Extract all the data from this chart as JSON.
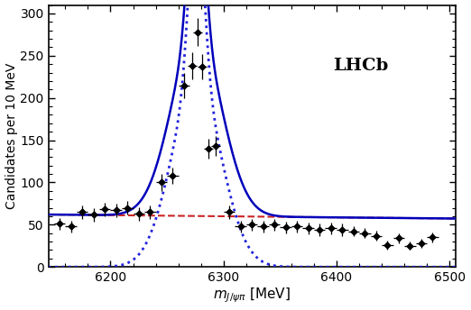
{
  "xlim": [
    6145,
    6505
  ],
  "ylim": [
    0,
    310
  ],
  "xlabel": "m_{J/\\psi\\pi} [MeV]",
  "ylabel": "Candidates per 10 MeV",
  "label_text": "LHCb",
  "xticks": [
    6200,
    6300,
    6400,
    6500
  ],
  "yticks": [
    0,
    50,
    100,
    150,
    200,
    250,
    300
  ],
  "signal_mean": 6276,
  "signal_sigma_narrow": 6.5,
  "signal_sigma_wide": 22,
  "signal_amp_narrow": 215,
  "signal_amp_wide": 215,
  "bg_amp": 62,
  "bg_slope": -0.00022,
  "bg_ref": 6145,
  "data_points": [
    [
      6155,
      51,
      5,
      7
    ],
    [
      6165,
      48,
      5,
      7
    ],
    [
      6175,
      65,
      5,
      8
    ],
    [
      6185,
      62,
      5,
      8
    ],
    [
      6195,
      68,
      5,
      8
    ],
    [
      6205,
      67,
      5,
      8
    ],
    [
      6215,
      70,
      5,
      8
    ],
    [
      6225,
      63,
      5,
      8
    ],
    [
      6235,
      65,
      5,
      8
    ],
    [
      6245,
      100,
      5,
      10
    ],
    [
      6255,
      108,
      5,
      10
    ],
    [
      6265,
      215,
      5,
      15
    ],
    [
      6272,
      238,
      4,
      16
    ],
    [
      6277,
      278,
      4,
      17
    ],
    [
      6281,
      237,
      4,
      15
    ],
    [
      6287,
      140,
      4,
      12
    ],
    [
      6293,
      143,
      4,
      12
    ],
    [
      6305,
      65,
      5,
      8
    ],
    [
      6315,
      48,
      5,
      7
    ],
    [
      6325,
      50,
      5,
      7
    ],
    [
      6335,
      48,
      5,
      7
    ],
    [
      6345,
      50,
      5,
      7
    ],
    [
      6355,
      47,
      5,
      7
    ],
    [
      6365,
      48,
      5,
      7
    ],
    [
      6375,
      46,
      5,
      7
    ],
    [
      6385,
      44,
      5,
      7
    ],
    [
      6395,
      46,
      5,
      7
    ],
    [
      6405,
      44,
      5,
      7
    ],
    [
      6415,
      42,
      5,
      6
    ],
    [
      6425,
      40,
      5,
      6
    ],
    [
      6435,
      37,
      5,
      6
    ],
    [
      6445,
      26,
      5,
      5
    ],
    [
      6455,
      34,
      5,
      6
    ],
    [
      6465,
      25,
      5,
      5
    ],
    [
      6475,
      28,
      5,
      5
    ],
    [
      6485,
      35,
      5,
      6
    ]
  ],
  "line_color": "#0000bb",
  "dashed_color": "#2222dd",
  "bg_color": "#cc2222",
  "data_color": "#000000"
}
